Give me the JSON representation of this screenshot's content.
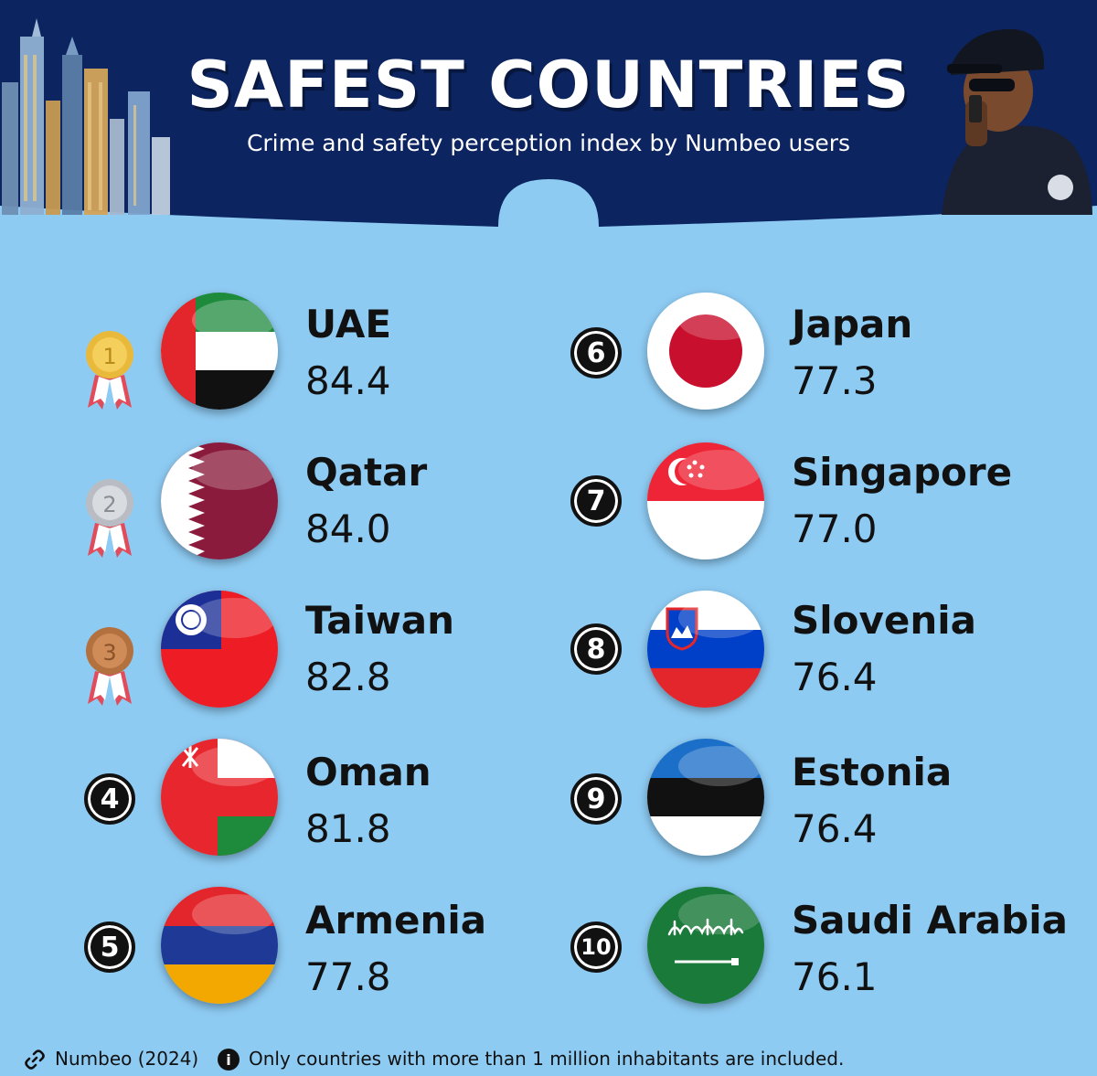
{
  "header": {
    "title": "SAFEST COUNTRIES",
    "subtitle": "Crime and safety perception index by Numbeo users",
    "colors": {
      "navy": "#0c2460",
      "background": "#8ecbf3"
    }
  },
  "rankings": [
    {
      "rank": "1",
      "country": "UAE",
      "score": "84.4",
      "marker": "gold-medal-icon"
    },
    {
      "rank": "2",
      "country": "Qatar",
      "score": "84.0",
      "marker": "silver-medal-icon"
    },
    {
      "rank": "3",
      "country": "Taiwan",
      "score": "82.8",
      "marker": "bronze-medal-icon"
    },
    {
      "rank": "4",
      "country": "Oman",
      "score": "81.8",
      "marker": "number-badge"
    },
    {
      "rank": "5",
      "country": "Armenia",
      "score": "77.8",
      "marker": "number-badge"
    },
    {
      "rank": "6",
      "country": "Japan",
      "score": "77.3",
      "marker": "number-badge"
    },
    {
      "rank": "7",
      "country": "Singapore",
      "score": "77.0",
      "marker": "number-badge"
    },
    {
      "rank": "8",
      "country": "Slovenia",
      "score": "76.4",
      "marker": "number-badge"
    },
    {
      "rank": "9",
      "country": "Estonia",
      "score": "76.4",
      "marker": "number-badge"
    },
    {
      "rank": "10",
      "country": "Saudi Arabia",
      "score": "76.1",
      "marker": "number-badge"
    }
  ],
  "footer": {
    "source": "Numbeo (2024)",
    "note": "Only countries with more than 1 million inhabitants are included.",
    "source_icon": "link-icon",
    "note_icon": "info-icon"
  }
}
